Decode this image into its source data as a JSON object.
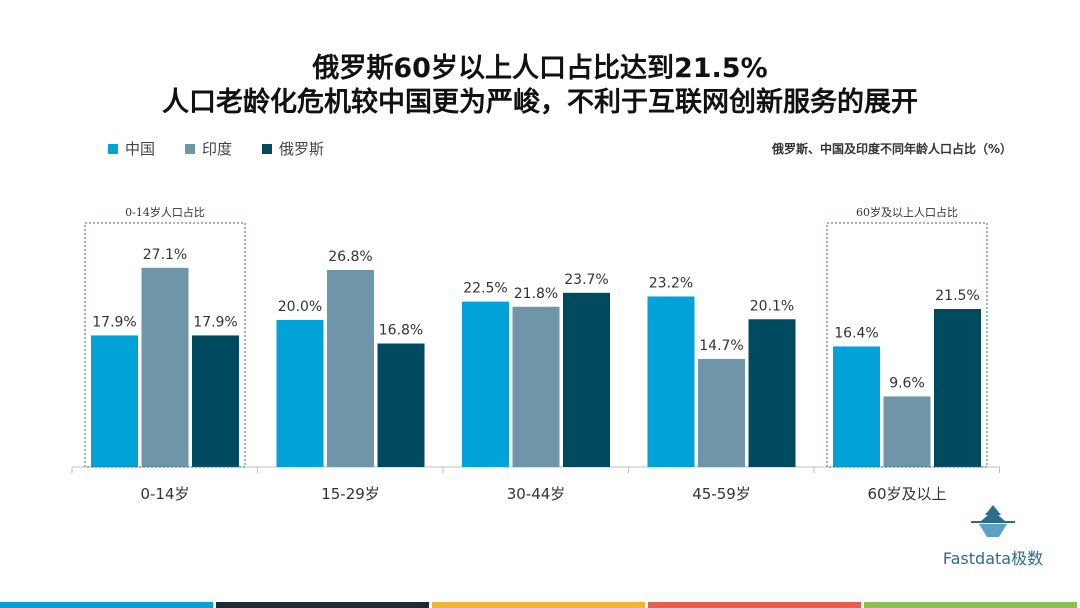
{
  "title_line1": "俄罗斯60岁以上人口占比达到21.5%",
  "title_line2": "人口老龄化危机较中国更为严峻，不利于互联网创新服务的展开",
  "subtitle": "俄罗斯、中国及印度不同年龄人口占比（%）",
  "logo_text": "Fastdata极数",
  "colors": {
    "china": "#00a2d8",
    "india": "#6f96a8",
    "russia": "#004a60",
    "bottom_bar": [
      "#00a2d8",
      "#1e2a33",
      "#f2b233",
      "#e8604c",
      "#8cc152"
    ]
  },
  "chart_data": {
    "type": "bar",
    "categories": [
      "0-14岁",
      "15-29岁",
      "30-44岁",
      "45-59岁",
      "60岁及以上"
    ],
    "series": [
      {
        "name": "中国",
        "values": [
          17.9,
          20.0,
          22.5,
          23.2,
          16.4
        ],
        "labels": [
          "17.9%",
          "20.0%",
          "22.5%",
          "23.2%",
          "16.4%"
        ]
      },
      {
        "name": "印度",
        "values": [
          27.1,
          26.8,
          21.8,
          14.7,
          9.6
        ],
        "labels": [
          "27.1%",
          "26.8%",
          "21.8%",
          "14.7%",
          "9.6%"
        ]
      },
      {
        "name": "俄罗斯",
        "values": [
          17.9,
          16.8,
          23.7,
          20.1,
          21.5
        ],
        "labels": [
          "17.9%",
          "16.8%",
          "23.7%",
          "20.1%",
          "21.5%"
        ]
      }
    ],
    "ylim": [
      0,
      30
    ],
    "annotations": [
      {
        "text": "0-14岁人口占比",
        "category_index": 0
      },
      {
        "text": "60岁及以上人口占比",
        "category_index": 4
      }
    ],
    "legend_position": "top-left"
  }
}
